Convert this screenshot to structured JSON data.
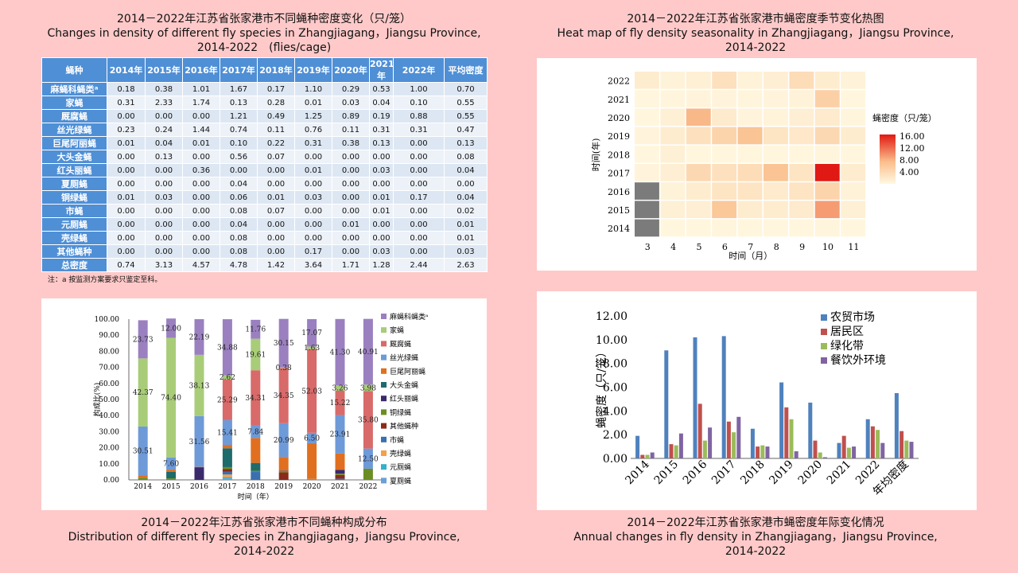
{
  "captions": {
    "table": {
      "zh": "2014－2022年江苏省张家港市不同蝇种密度变化（只/笼）",
      "en": "Changes in density of different fly species in Zhangjiagang，Jiangsu Province,",
      "years": "2014-2022　(flies/cage)"
    },
    "heatmap": {
      "zh": "2014－2022年江苏省张家港市蝇密度季节变化热图",
      "en": "Heat map of fly density seasonality in Zhangjiagang，Jiangsu Province,",
      "years": "2014-2022"
    },
    "stacked": {
      "zh": "2014－2022年江苏省张家港市不同蝇种构成分布",
      "en": "Distribution of different fly species in Zhangjiagang，Jiangsu Province,",
      "years": "2014-2022"
    },
    "annual": {
      "zh": "2014－2022年江苏省张家港市蝇密度年际变化情况",
      "en": "Annual changes in fly density in Zhangjiagang，Jiangsu Province,",
      "years": "2014-2022"
    }
  },
  "table": {
    "headers": [
      "蝇种",
      "2014年",
      "2015年",
      "2016年",
      "2017年",
      "2018年",
      "2019年",
      "2020年",
      "2021年",
      "2022年",
      "平均密度"
    ],
    "rows": [
      [
        "麻蝇科蝇类ᵃ",
        "0.18",
        "0.38",
        "1.01",
        "1.67",
        "0.17",
        "1.10",
        "0.29",
        "0.53",
        "1.00",
        "0.70"
      ],
      [
        "家蝇",
        "0.31",
        "2.33",
        "1.74",
        "0.13",
        "0.28",
        "0.01",
        "0.03",
        "0.04",
        "0.10",
        "0.55"
      ],
      [
        "厩腐蝇",
        "0.00",
        "0.00",
        "0.00",
        "1.21",
        "0.49",
        "1.25",
        "0.89",
        "0.19",
        "0.88",
        "0.55"
      ],
      [
        "丝光绿蝇",
        "0.23",
        "0.24",
        "1.44",
        "0.74",
        "0.11",
        "0.76",
        "0.11",
        "0.31",
        "0.31",
        "0.47"
      ],
      [
        "巨尾阿丽蝇",
        "0.01",
        "0.04",
        "0.01",
        "0.10",
        "0.22",
        "0.31",
        "0.38",
        "0.13",
        "0.00",
        "0.13"
      ],
      [
        "大头金蝇",
        "0.00",
        "0.13",
        "0.00",
        "0.56",
        "0.07",
        "0.00",
        "0.00",
        "0.00",
        "0.00",
        "0.08"
      ],
      [
        "红头丽蝇",
        "0.00",
        "0.00",
        "0.36",
        "0.00",
        "0.00",
        "0.01",
        "0.00",
        "0.03",
        "0.00",
        "0.04"
      ],
      [
        "夏厕蝇",
        "0.00",
        "0.00",
        "0.00",
        "0.04",
        "0.00",
        "0.00",
        "0.00",
        "0.00",
        "0.00",
        "0.00"
      ],
      [
        "铜绿蝇",
        "0.01",
        "0.03",
        "0.00",
        "0.06",
        "0.01",
        "0.03",
        "0.00",
        "0.01",
        "0.17",
        "0.04"
      ],
      [
        "市蝇",
        "0.00",
        "0.00",
        "0.00",
        "0.08",
        "0.07",
        "0.00",
        "0.00",
        "0.01",
        "0.00",
        "0.02"
      ],
      [
        "元厕蝇",
        "0.00",
        "0.00",
        "0.00",
        "0.04",
        "0.00",
        "0.00",
        "0.01",
        "0.00",
        "0.00",
        "0.01"
      ],
      [
        "壳绿蝇",
        "0.00",
        "0.00",
        "0.00",
        "0.08",
        "0.00",
        "0.00",
        "0.00",
        "0.00",
        "0.00",
        "0.01"
      ],
      [
        "其他蝇种",
        "0.00",
        "0.00",
        "0.00",
        "0.08",
        "0.00",
        "0.17",
        "0.00",
        "0.03",
        "0.00",
        "0.03"
      ],
      [
        "总密度",
        "0.74",
        "3.13",
        "4.57",
        "4.78",
        "1.42",
        "3.64",
        "1.71",
        "1.28",
        "2.44",
        "2.63"
      ]
    ],
    "note": "注：a 按监测方案要求只鉴定至科。"
  },
  "chart_data": [
    {
      "type": "heatmap",
      "title": "2014－2022年江苏省张家港市蝇密度季节变化热图",
      "xlabel": "时间（月）",
      "ylabel": "时间(年)",
      "x": [
        "3",
        "4",
        "5",
        "6",
        "7",
        "8",
        "9",
        "10",
        "11"
      ],
      "y": [
        "2022",
        "2021",
        "2020",
        "2019",
        "2018",
        "2017",
        "2016",
        "2015",
        "2014"
      ],
      "values": [
        [
          1.5,
          0.8,
          1.0,
          3.0,
          0.8,
          1.2,
          3.5,
          1.5,
          0.8
        ],
        [
          0.3,
          0.4,
          0.5,
          0.5,
          0.4,
          0.5,
          0.8,
          5.0,
          0.3
        ],
        [
          0.3,
          1.0,
          7.5,
          1.8,
          0.5,
          0.6,
          1.2,
          1.8,
          0.4
        ],
        [
          0.5,
          1.5,
          3.0,
          4.5,
          6.5,
          2.5,
          2.0,
          4.0,
          1.5
        ],
        [
          0.3,
          1.0,
          0.3,
          0.3,
          0.3,
          0.3,
          0.3,
          0.4,
          0.3
        ],
        [
          0.5,
          1.2,
          4.0,
          3.0,
          3.5,
          6.5,
          2.5,
          16.0,
          1.5
        ],
        [
          null,
          0.8,
          1.5,
          2.5,
          2.5,
          1.8,
          2.5,
          4.5,
          0.8
        ],
        [
          null,
          1.0,
          1.2,
          6.0,
          1.5,
          1.5,
          1.8,
          9.0,
          1.0
        ],
        [
          null,
          0.3,
          0.3,
          0.4,
          0.3,
          0.3,
          0.3,
          0.4,
          0.3
        ]
      ],
      "legend_title": "蝇密度（只/笼）",
      "legend_ticks": [
        "16.00",
        "12.00",
        "8.00",
        "4.00"
      ],
      "range": [
        0,
        16
      ]
    },
    {
      "type": "bar",
      "title": "2014－2022年江苏省张家港市不同蝇种构成分布",
      "stacked": true,
      "xlabel": "时间（年）",
      "ylabel": "构成比(%)",
      "categories": [
        "2014",
        "2015",
        "2016",
        "2017",
        "2018",
        "2019",
        "2020",
        "2021",
        "2022"
      ],
      "yticks": [
        "0.00",
        "10.00",
        "20.00",
        "30.00",
        "40.00",
        "50.00",
        "60.00",
        "70.00",
        "80.00",
        "90.00",
        "100.00"
      ],
      "ylim": [
        0,
        100
      ],
      "series": [
        {
          "name": "夏厕蝇",
          "color": "#6aa0d8",
          "values": [
            0,
            0,
            0,
            0.84,
            0,
            0,
            0,
            0,
            0
          ]
        },
        {
          "name": "元厕蝇",
          "color": "#36b0c8",
          "values": [
            0,
            0,
            0,
            0.84,
            0,
            0,
            0.58,
            0,
            0
          ]
        },
        {
          "name": "壳绿蝇",
          "color": "#f5a04a",
          "values": [
            0,
            0,
            0,
            1.67,
            0,
            0,
            0,
            0,
            0
          ]
        },
        {
          "name": "市蝇",
          "color": "#3a6fb0",
          "values": [
            0,
            0,
            0,
            1.67,
            4.93,
            0,
            0,
            0.78,
            0
          ]
        },
        {
          "name": "其他蝇种",
          "color": "#8b2a1a",
          "values": [
            0,
            0,
            0,
            1.67,
            0,
            4.67,
            0,
            2.34,
            0
          ]
        },
        {
          "name": "铜绿蝇",
          "color": "#6b8e23",
          "values": [
            1.35,
            0.96,
            0,
            1.26,
            0.7,
            0.82,
            0,
            0.78,
            6.97
          ]
        },
        {
          "name": "红头丽蝇",
          "color": "#3b2a6b",
          "values": [
            0,
            0,
            7.88,
            0,
            0,
            0.27,
            0,
            2.34,
            0
          ]
        },
        {
          "name": "大头金蝇",
          "color": "#1e6b6b",
          "values": [
            0,
            4.15,
            0,
            11.72,
            4.93,
            0,
            0,
            0,
            0
          ]
        },
        {
          "name": "巨尾阿丽蝇",
          "color": "#e07020",
          "values": [
            1.35,
            1.28,
            0.22,
            2.09,
            15.49,
            8.52,
            22.22,
            10.16,
            0
          ]
        },
        {
          "name": "丝光绿蝇",
          "color": "#6e9ad8",
          "values": [
            30.51,
            7.6,
            31.56,
            15.41,
            7.84,
            20.99,
            6.5,
            23.91,
            12.5
          ]
        },
        {
          "name": "厩腐蝇",
          "color": "#d86a6a",
          "values": [
            0,
            0,
            0,
            25.29,
            34.31,
            34.35,
            52.03,
            15.22,
            35.8
          ]
        },
        {
          "name": "家蝇",
          "color": "#a8cc78",
          "values": [
            42.37,
            74.4,
            38.13,
            2.62,
            19.61,
            0.38,
            1.63,
            3.26,
            3.98
          ]
        },
        {
          "name": "麻蝇科蝇类ᵃ",
          "color": "#9b80c0",
          "values": [
            23.73,
            12.0,
            22.19,
            34.88,
            11.76,
            30.15,
            17.07,
            41.3,
            40.91
          ]
        }
      ],
      "data_labels": [
        {
          "series": "麻蝇科蝇类ᵃ",
          "labels": [
            "23.73",
            "12.00",
            "22.19",
            "34.88",
            "11.76",
            "30.15",
            "17.07",
            "41.30",
            "40.91"
          ]
        },
        {
          "series": "家蝇",
          "labels": [
            "42.37",
            "74.40",
            "38.13",
            "2.62",
            "19.61",
            "0.38",
            "1.63",
            "3.26",
            "3.98"
          ]
        },
        {
          "series": "厩腐蝇",
          "labels": [
            "",
            "",
            "",
            "25.29",
            "34.31",
            "34.35",
            "52.03",
            "15.22",
            "35.80"
          ]
        },
        {
          "series": "丝光绿蝇",
          "labels": [
            "30.51",
            "7.60",
            "31.56",
            "15.41",
            "7.84",
            "20.99",
            "6.50",
            "23.91",
            "12.50"
          ]
        }
      ],
      "legend_order": [
        "麻蝇科蝇类ᵃ",
        "家蝇",
        "厩腐蝇",
        "丝光绿蝇",
        "巨尾阿丽蝇",
        "大头金蝇",
        "红头丽蝇",
        "铜绿蝇",
        "其他蝇种",
        "市蝇",
        "壳绿蝇",
        "元厕蝇",
        "夏厕蝇"
      ]
    },
    {
      "type": "bar",
      "title": "2014－2022年江苏省张家港市蝇密度年际变化情况",
      "xlabel": "",
      "ylabel": "蝇密度（只/笼）",
      "categories": [
        "2014",
        "2015",
        "2016",
        "2017",
        "2018",
        "2019",
        "2020",
        "2021",
        "2022",
        "年均密度"
      ],
      "yticks": [
        "0.00",
        "2.00",
        "4.00",
        "6.00",
        "8.00",
        "10.00",
        "12.00"
      ],
      "ylim": [
        0,
        12
      ],
      "series": [
        {
          "name": "农贸市场",
          "color": "#4f81bd",
          "values": [
            1.9,
            9.1,
            10.2,
            10.3,
            2.5,
            6.4,
            4.7,
            1.3,
            3.3,
            5.5
          ]
        },
        {
          "name": "居民区",
          "color": "#c0504d",
          "values": [
            0.3,
            1.2,
            4.6,
            3.1,
            1.0,
            4.3,
            1.5,
            1.9,
            2.7,
            2.3
          ]
        },
        {
          "name": "绿化带",
          "color": "#9bbb59",
          "values": [
            0.3,
            1.1,
            1.5,
            2.2,
            1.1,
            3.3,
            0.5,
            0.9,
            2.4,
            1.5
          ]
        },
        {
          "name": "餐饮外环境",
          "color": "#8064a2",
          "values": [
            0.5,
            2.1,
            2.6,
            3.5,
            1.0,
            0.6,
            0.1,
            1.0,
            1.3,
            1.4
          ]
        }
      ]
    }
  ]
}
